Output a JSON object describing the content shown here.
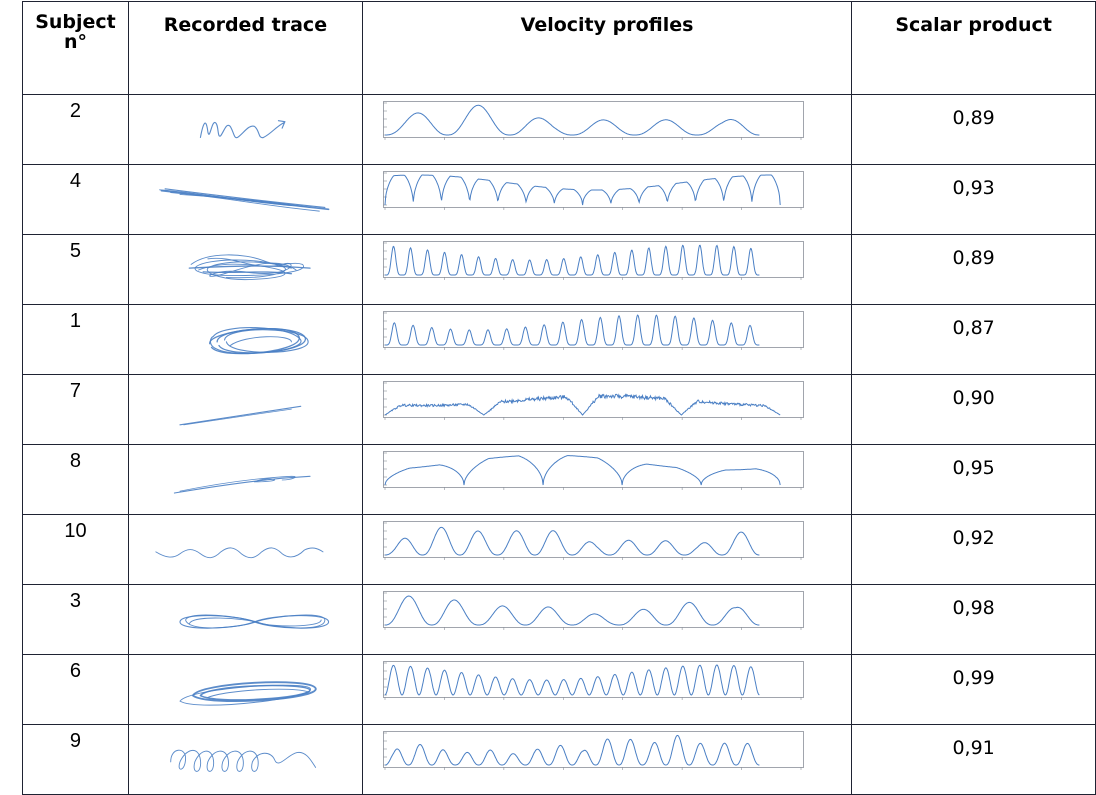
{
  "headers": {
    "subject": "Subject n°",
    "trace": "Recorded trace",
    "velocity": "Velocity profiles",
    "scalar": "Scalar product"
  },
  "rows": [
    {
      "subject": "2",
      "trace": "zigzag-arrow",
      "scalar": "0,89",
      "peaks": 6,
      "style": "smooth"
    },
    {
      "subject": "4",
      "trace": "long-line-scribble",
      "scalar": "0,93",
      "peaks": 14,
      "style": "plateau"
    },
    {
      "subject": "5",
      "trace": "dense-scribble",
      "scalar": "0,89",
      "peaks": 22,
      "style": "spiky"
    },
    {
      "subject": "1",
      "trace": "ellipse-loops",
      "scalar": "0,87",
      "peaks": 20,
      "style": "spiky"
    },
    {
      "subject": "7",
      "trace": "thin-line",
      "scalar": "0,90",
      "peaks": 4,
      "style": "noisy-plateau"
    },
    {
      "subject": "8",
      "trace": "thin-line-loops",
      "scalar": "0,95",
      "peaks": 5,
      "style": "plateau"
    },
    {
      "subject": "10",
      "trace": "wave",
      "scalar": "0,92",
      "peaks": 10,
      "style": "smooth"
    },
    {
      "subject": "3",
      "trace": "figure-eight",
      "scalar": "0,98",
      "peaks": 8,
      "style": "smooth"
    },
    {
      "subject": "6",
      "trace": "flat-ellipse",
      "scalar": "0,99",
      "peaks": 22,
      "style": "regular"
    },
    {
      "subject": "9",
      "trace": "loops-wave",
      "scalar": "0,91",
      "peaks": 16,
      "style": "smooth"
    }
  ],
  "colors": {
    "trace": "#4a7fc4",
    "border": "#1f2333"
  }
}
